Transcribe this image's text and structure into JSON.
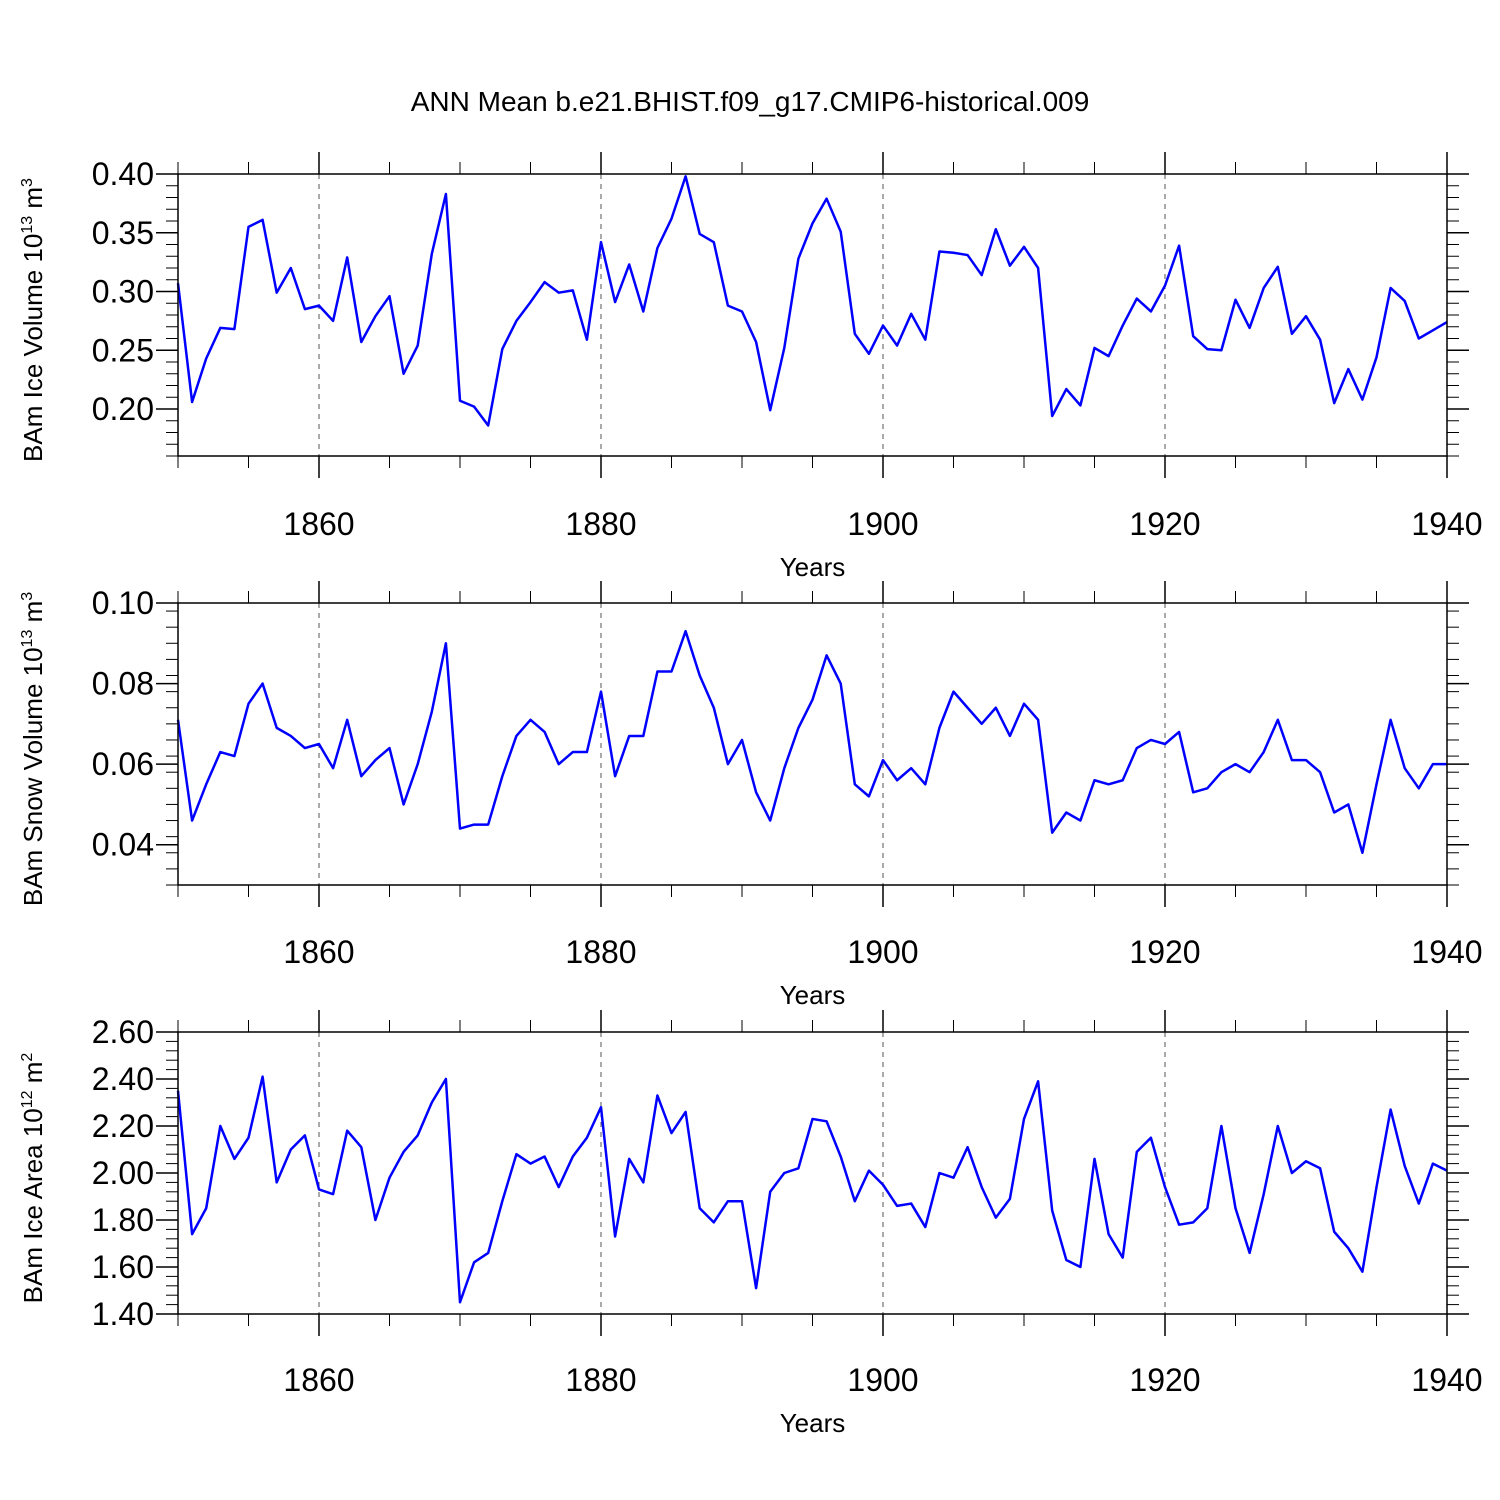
{
  "figure": {
    "title": "ANN Mean b.e21.BHIST.f09_g17.CMIP6-historical.009"
  },
  "chart_data": [
    {
      "type": "line",
      "ylabel_text": "BAm Ice Volume 10",
      "ylabel_exp": "13",
      "ylabel_unit": " m",
      "ylabel_unit_exp": "3",
      "xlabel": "Years",
      "xlim": [
        1850,
        1940
      ],
      "ylim": [
        0.16,
        0.4
      ],
      "x_ticks": [
        1860,
        1880,
        1900,
        1920,
        1940
      ],
      "x_tick_labels": [
        "1860",
        "1880",
        "1900",
        "1920",
        "1940"
      ],
      "y_ticks": [
        0.2,
        0.25,
        0.3,
        0.35,
        0.4
      ],
      "y_tick_labels": [
        "0.20",
        "0.25",
        "0.30",
        "0.35",
        "0.40"
      ],
      "grid": "vertical dashed at major x ticks",
      "series": [
        {
          "color": "#0000ff",
          "x_start": 1850,
          "values": [
            0.307,
            0.206,
            0.243,
            0.269,
            0.268,
            0.355,
            0.361,
            0.299,
            0.32,
            0.285,
            0.288,
            0.275,
            0.329,
            0.257,
            0.279,
            0.296,
            0.23,
            0.254,
            0.332,
            0.383,
            0.207,
            0.202,
            0.186,
            0.251,
            0.275,
            0.291,
            0.308,
            0.299,
            0.301,
            0.259,
            0.342,
            0.291,
            0.323,
            0.283,
            0.337,
            0.362,
            0.398,
            0.349,
            0.342,
            0.288,
            0.283,
            0.257,
            0.199,
            0.252,
            0.328,
            0.358,
            0.379,
            0.351,
            0.264,
            0.247,
            0.271,
            0.254,
            0.281,
            0.259,
            0.334,
            0.333,
            0.331,
            0.314,
            0.353,
            0.322,
            0.338,
            0.32,
            0.194,
            0.217,
            0.203,
            0.252,
            0.245,
            0.271,
            0.294,
            0.283,
            0.305,
            0.339,
            0.262,
            0.251,
            0.25,
            0.293,
            0.269,
            0.303,
            0.321,
            0.264,
            0.279,
            0.259,
            0.205,
            0.234,
            0.208,
            0.244,
            0.303,
            0.292,
            0.26,
            0.267,
            0.274
          ]
        }
      ]
    },
    {
      "type": "line",
      "ylabel_text": "BAm Snow Volume 10",
      "ylabel_exp": "13",
      "ylabel_unit": " m",
      "ylabel_unit_exp": "3",
      "xlabel": "Years",
      "xlim": [
        1850,
        1940
      ],
      "ylim": [
        0.03,
        0.1
      ],
      "x_ticks": [
        1860,
        1880,
        1900,
        1920,
        1940
      ],
      "x_tick_labels": [
        "1860",
        "1880",
        "1900",
        "1920",
        "1940"
      ],
      "y_ticks": [
        0.04,
        0.06,
        0.08,
        0.1
      ],
      "y_tick_labels": [
        "0.04",
        "0.06",
        "0.08",
        "0.10"
      ],
      "grid": "vertical dashed at major x ticks",
      "series": [
        {
          "color": "#0000ff",
          "x_start": 1850,
          "values": [
            0.071,
            0.046,
            0.055,
            0.063,
            0.062,
            0.075,
            0.08,
            0.069,
            0.067,
            0.064,
            0.065,
            0.059,
            0.071,
            0.057,
            0.061,
            0.064,
            0.05,
            0.06,
            0.073,
            0.09,
            0.044,
            0.045,
            0.045,
            0.057,
            0.067,
            0.071,
            0.068,
            0.06,
            0.063,
            0.063,
            0.078,
            0.057,
            0.067,
            0.067,
            0.083,
            0.083,
            0.093,
            0.082,
            0.074,
            0.06,
            0.066,
            0.053,
            0.046,
            0.059,
            0.069,
            0.076,
            0.087,
            0.08,
            0.055,
            0.052,
            0.061,
            0.056,
            0.059,
            0.055,
            0.069,
            0.078,
            0.074,
            0.07,
            0.074,
            0.067,
            0.075,
            0.071,
            0.043,
            0.048,
            0.046,
            0.056,
            0.055,
            0.056,
            0.064,
            0.066,
            0.065,
            0.068,
            0.053,
            0.054,
            0.058,
            0.06,
            0.058,
            0.063,
            0.071,
            0.061,
            0.061,
            0.058,
            0.048,
            0.05,
            0.038,
            0.055,
            0.071,
            0.059,
            0.054,
            0.06,
            0.06
          ]
        }
      ]
    },
    {
      "type": "line",
      "ylabel_text": "BAm Ice Area 10",
      "ylabel_exp": "12",
      "ylabel_unit": " m",
      "ylabel_unit_exp": "2",
      "xlabel": "Years",
      "xlim": [
        1850,
        1940
      ],
      "ylim": [
        1.4,
        2.6
      ],
      "x_ticks": [
        1860,
        1880,
        1900,
        1920,
        1940
      ],
      "x_tick_labels": [
        "1860",
        "1880",
        "1900",
        "1920",
        "1940"
      ],
      "y_ticks": [
        1.4,
        1.6,
        1.8,
        2.0,
        2.2,
        2.4,
        2.6
      ],
      "y_tick_labels": [
        "1.40",
        "1.60",
        "1.80",
        "2.00",
        "2.20",
        "2.40",
        "2.60"
      ],
      "grid": "vertical dashed at major x ticks",
      "series": [
        {
          "color": "#0000ff",
          "x_start": 1850,
          "values": [
            2.35,
            1.74,
            1.85,
            2.2,
            2.06,
            2.15,
            2.41,
            1.96,
            2.1,
            2.16,
            1.93,
            1.91,
            2.18,
            2.11,
            1.8,
            1.98,
            2.09,
            2.16,
            2.3,
            2.4,
            1.45,
            1.62,
            1.66,
            1.88,
            2.08,
            2.04,
            2.07,
            1.94,
            2.07,
            2.15,
            2.28,
            1.73,
            2.06,
            1.96,
            2.33,
            2.17,
            2.26,
            1.85,
            1.79,
            1.88,
            1.88,
            1.51,
            1.92,
            2.0,
            2.02,
            2.23,
            2.22,
            2.07,
            1.88,
            2.01,
            1.95,
            1.86,
            1.87,
            1.77,
            2.0,
            1.98,
            2.11,
            1.94,
            1.81,
            1.89,
            2.23,
            2.39,
            1.84,
            1.63,
            1.6,
            2.06,
            1.74,
            1.64,
            2.09,
            2.15,
            1.94,
            1.78,
            1.79,
            1.85,
            2.2,
            1.85,
            1.66,
            1.91,
            2.2,
            2.0,
            2.05,
            2.02,
            1.75,
            1.68,
            1.58,
            1.94,
            2.27,
            2.03,
            1.87,
            2.04,
            2.01
          ]
        }
      ]
    }
  ]
}
